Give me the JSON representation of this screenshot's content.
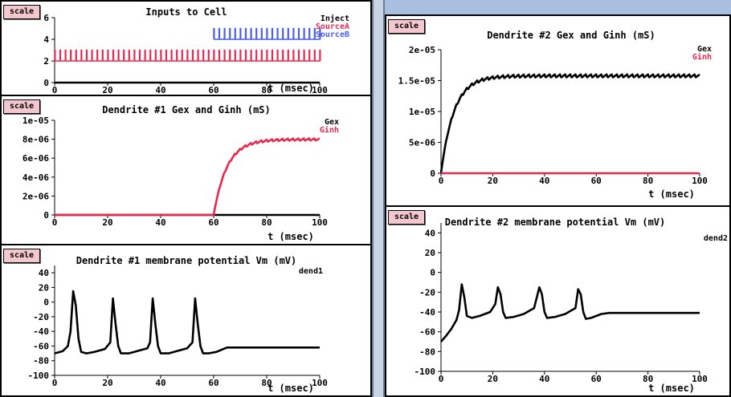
{
  "colors": {
    "black": "#000000",
    "red": "#e8294e",
    "blue": "#4a5ee8",
    "white": "#ffffff"
  },
  "scale_label": "scale",
  "panels": [
    {
      "id": "inputs",
      "title": "Inputs to Cell",
      "legend": [
        {
          "label": "Inject",
          "color": "#000000"
        },
        {
          "label": "SourceA",
          "color": "#e8294e"
        },
        {
          "label": "SourceB",
          "color": "#4a5ee8"
        }
      ],
      "xlabel": "t (msec)",
      "xticks": [
        "0",
        "20",
        "40",
        "60",
        "80",
        "100"
      ],
      "yticks": [
        "0",
        "2",
        "4",
        "6"
      ]
    },
    {
      "id": "d1g",
      "title": "Dendrite #1 Gex and Ginh (mS)",
      "legend": [
        {
          "label": "Gex",
          "color": "#000000"
        },
        {
          "label": "Ginh",
          "color": "#e8294e"
        }
      ],
      "xlabel": "t (msec)",
      "xticks": [
        "0",
        "20",
        "40",
        "60",
        "80",
        "100"
      ],
      "yticks": [
        "0",
        "2e-06",
        "4e-06",
        "6e-06",
        "8e-06",
        "1e-05"
      ]
    },
    {
      "id": "d1v",
      "title": "Dendrite #1 membrane potential Vm (mV)",
      "legend": [
        {
          "label": "dend1",
          "color": "#000000"
        }
      ],
      "xlabel": "t (msec)",
      "xticks": [
        "0",
        "20",
        "40",
        "60",
        "80",
        "100"
      ],
      "yticks": [
        "-100",
        "-80",
        "-60",
        "-40",
        "-20",
        "0",
        "20",
        "40"
      ]
    },
    {
      "id": "d2g",
      "title": "Dendrite #2 Gex and Ginh (mS)",
      "legend": [
        {
          "label": "Gex",
          "color": "#000000"
        },
        {
          "label": "Ginh",
          "color": "#e8294e"
        }
      ],
      "xlabel": "t (msec)",
      "xticks": [
        "0",
        "20",
        "40",
        "60",
        "80",
        "100"
      ],
      "yticks": [
        "0",
        "5e-06",
        "1e-05",
        "1.5e-05",
        "2e-05"
      ]
    },
    {
      "id": "d2v",
      "title": "Dendrite #2 membrane potential Vm (mV)",
      "legend": [
        {
          "label": "dend2",
          "color": "#000000"
        }
      ],
      "xlabel": "t (msec)",
      "xticks": [
        "0",
        "20",
        "40",
        "60",
        "80",
        "100"
      ],
      "yticks": [
        "-100",
        "-80",
        "-60",
        "-40",
        "-20",
        "0",
        "20",
        "40"
      ]
    }
  ],
  "chart_data": [
    {
      "type": "line",
      "title": "Inputs to Cell",
      "xlabel": "t (msec)",
      "ylabel": "",
      "xlim": [
        0,
        100
      ],
      "ylim": [
        0,
        6
      ],
      "series": [
        {
          "name": "Inject",
          "color": "#000000",
          "kind": "constant",
          "value": 0
        },
        {
          "name": "SourceA",
          "color": "#e8294e",
          "kind": "pulses",
          "base": 2,
          "amplitude": 1,
          "start": 0,
          "end": 100,
          "period": 2
        },
        {
          "name": "SourceB",
          "color": "#4a5ee8",
          "kind": "pulses",
          "base": 4,
          "amplitude": 1,
          "start": 60,
          "end": 100,
          "period": 2
        }
      ]
    },
    {
      "type": "line",
      "title": "Dendrite #1 Gex and Ginh (mS)",
      "xlabel": "t (msec)",
      "ylabel": "",
      "xlim": [
        0,
        100
      ],
      "ylim": [
        0,
        1e-05
      ],
      "series": [
        {
          "name": "Gex",
          "color": "#000000",
          "points": [
            [
              0,
              0
            ],
            [
              100,
              0
            ]
          ]
        },
        {
          "name": "Ginh",
          "color": "#e8294e",
          "kind": "rise",
          "start": 60,
          "plateau": 8.1e-06,
          "tau": 5,
          "ripple": 2.5e-07,
          "period": 2
        }
      ]
    },
    {
      "type": "line",
      "title": "Dendrite #1 membrane potential Vm (mV)",
      "xlabel": "t (msec)",
      "ylabel": "",
      "xlim": [
        0,
        100
      ],
      "ylim": [
        -100,
        50
      ],
      "series": [
        {
          "name": "dend1",
          "color": "#000000",
          "points": [
            [
              0,
              -70
            ],
            [
              3,
              -67
            ],
            [
              5,
              -60
            ],
            [
              6,
              -40
            ],
            [
              7,
              15
            ],
            [
              8,
              -5
            ],
            [
              9,
              -50
            ],
            [
              10,
              -68
            ],
            [
              12,
              -70
            ],
            [
              15,
              -68
            ],
            [
              19,
              -64
            ],
            [
              21,
              -55
            ],
            [
              22,
              5
            ],
            [
              23,
              -30
            ],
            [
              24,
              -60
            ],
            [
              25,
              -70
            ],
            [
              28,
              -70
            ],
            [
              31,
              -67
            ],
            [
              35,
              -63
            ],
            [
              36,
              -55
            ],
            [
              37,
              5
            ],
            [
              38,
              -30
            ],
            [
              39,
              -60
            ],
            [
              40,
              -70
            ],
            [
              43,
              -70
            ],
            [
              46,
              -67
            ],
            [
              50,
              -63
            ],
            [
              52,
              -55
            ],
            [
              53,
              5
            ],
            [
              54,
              -30
            ],
            [
              55,
              -60
            ],
            [
              56,
              -70
            ],
            [
              58,
              -70
            ],
            [
              61,
              -68
            ],
            [
              65,
              -62
            ],
            [
              70,
              -62
            ],
            [
              100,
              -62
            ]
          ]
        }
      ]
    },
    {
      "type": "line",
      "title": "Dendrite #2 Gex and Ginh (mS)",
      "xlabel": "t (msec)",
      "ylabel": "",
      "xlim": [
        0,
        100
      ],
      "ylim": [
        0,
        2e-05
      ],
      "series": [
        {
          "name": "Gex",
          "color": "#000000",
          "kind": "rise",
          "start": 0,
          "plateau": 1.6e-05,
          "tau": 5,
          "ripple": 5e-07,
          "period": 2
        },
        {
          "name": "Ginh",
          "color": "#e8294e",
          "points": [
            [
              0,
              0
            ],
            [
              100,
              0
            ]
          ]
        }
      ]
    },
    {
      "type": "line",
      "title": "Dendrite #2 membrane potential Vm (mV)",
      "xlabel": "t (msec)",
      "ylabel": "",
      "xlim": [
        0,
        100
      ],
      "ylim": [
        -100,
        50
      ],
      "series": [
        {
          "name": "dend2",
          "color": "#000000",
          "points": [
            [
              0,
              -70
            ],
            [
              2,
              -64
            ],
            [
              4,
              -57
            ],
            [
              6,
              -48
            ],
            [
              7,
              -38
            ],
            [
              8,
              -12
            ],
            [
              9,
              -25
            ],
            [
              10,
              -44
            ],
            [
              12,
              -46
            ],
            [
              15,
              -44
            ],
            [
              19,
              -40
            ],
            [
              21,
              -32
            ],
            [
              22,
              -15
            ],
            [
              23,
              -22
            ],
            [
              24,
              -40
            ],
            [
              25,
              -46
            ],
            [
              28,
              -45
            ],
            [
              32,
              -42
            ],
            [
              36,
              -36
            ],
            [
              38,
              -15
            ],
            [
              39,
              -22
            ],
            [
              40,
              -40
            ],
            [
              41,
              -46
            ],
            [
              44,
              -45
            ],
            [
              48,
              -42
            ],
            [
              52,
              -36
            ],
            [
              53,
              -17
            ],
            [
              54,
              -22
            ],
            [
              55,
              -40
            ],
            [
              56,
              -47
            ],
            [
              58,
              -46
            ],
            [
              62,
              -42
            ],
            [
              65,
              -41
            ],
            [
              100,
              -41
            ]
          ]
        }
      ]
    }
  ]
}
